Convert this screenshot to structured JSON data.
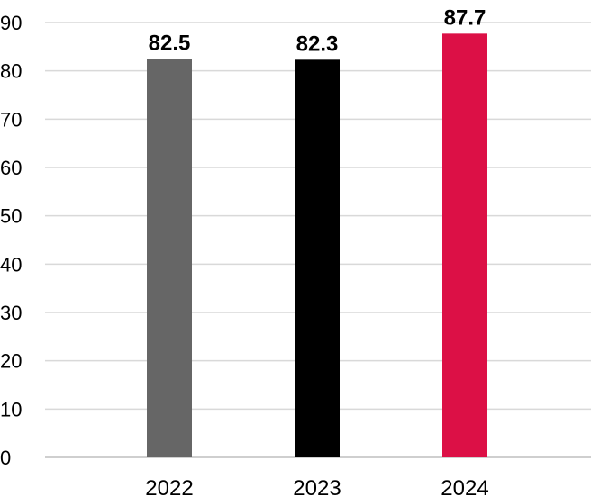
{
  "chart_data": {
    "type": "bar",
    "title": "",
    "xlabel": "",
    "ylabel": "",
    "categories": [
      "2022",
      "2023",
      "2024"
    ],
    "values": [
      82.5,
      82.3,
      87.7
    ],
    "data_labels": [
      "82.5",
      "82.3",
      "87.7"
    ],
    "bar_colors": [
      "#666666",
      "#000000",
      "#dc1046"
    ],
    "ylim": [
      0,
      90
    ],
    "yticks": [
      0,
      10,
      20,
      30,
      40,
      50,
      60,
      70,
      80,
      90
    ],
    "ytick_labels": [
      "0",
      "10",
      "20",
      "30",
      "40",
      "50",
      "60",
      "70",
      "80",
      "90"
    ],
    "grid": true,
    "legend": "none"
  }
}
